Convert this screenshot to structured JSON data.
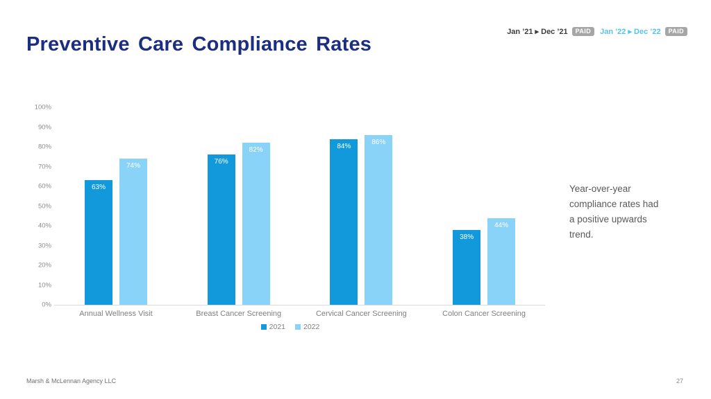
{
  "slide": {
    "title": "Preventive Care Compliance Rates",
    "footer": "Marsh & McLennan Agency LLC",
    "page_number": "27",
    "title_color": "#1b2e80",
    "background": "#ffffff"
  },
  "header": {
    "badge_bg": "#a6a6a6",
    "periods": [
      {
        "label": "Jan ’21 ▸ Dec ’21",
        "badge": "PAID",
        "color": "#3d3d3d"
      },
      {
        "label": "Jan ’22 ▸ Dec ’22",
        "badge": "PAID",
        "color": "#54c5e8"
      }
    ]
  },
  "annotation": {
    "lines": [
      "Year-over-year",
      "compliance rates had",
      "a positive upwards",
      "trend."
    ],
    "color": "#595959"
  },
  "chart_data": {
    "type": "bar",
    "title": "",
    "categories": [
      "Annual Wellness Visit",
      "Breast Cancer Screening",
      "Cervical Cancer Screening",
      "Colon Cancer Screening"
    ],
    "series": [
      {
        "name": "2021",
        "color": "#1199db",
        "values": [
          63,
          76,
          84,
          38
        ]
      },
      {
        "name": "2022",
        "color": "#8ad3f8",
        "values": [
          74,
          82,
          86,
          44
        ]
      }
    ],
    "value_suffix": "%",
    "xlabel": "",
    "ylabel": "",
    "ylim": [
      0,
      100
    ],
    "ytick_step": 10,
    "ytick_suffix": "%",
    "grid": false,
    "legend_position": "bottom",
    "bar_label_color": "#ffffff",
    "axis_text_color": "#8c8c8c",
    "axis_line_color": "#d9d9d9"
  }
}
